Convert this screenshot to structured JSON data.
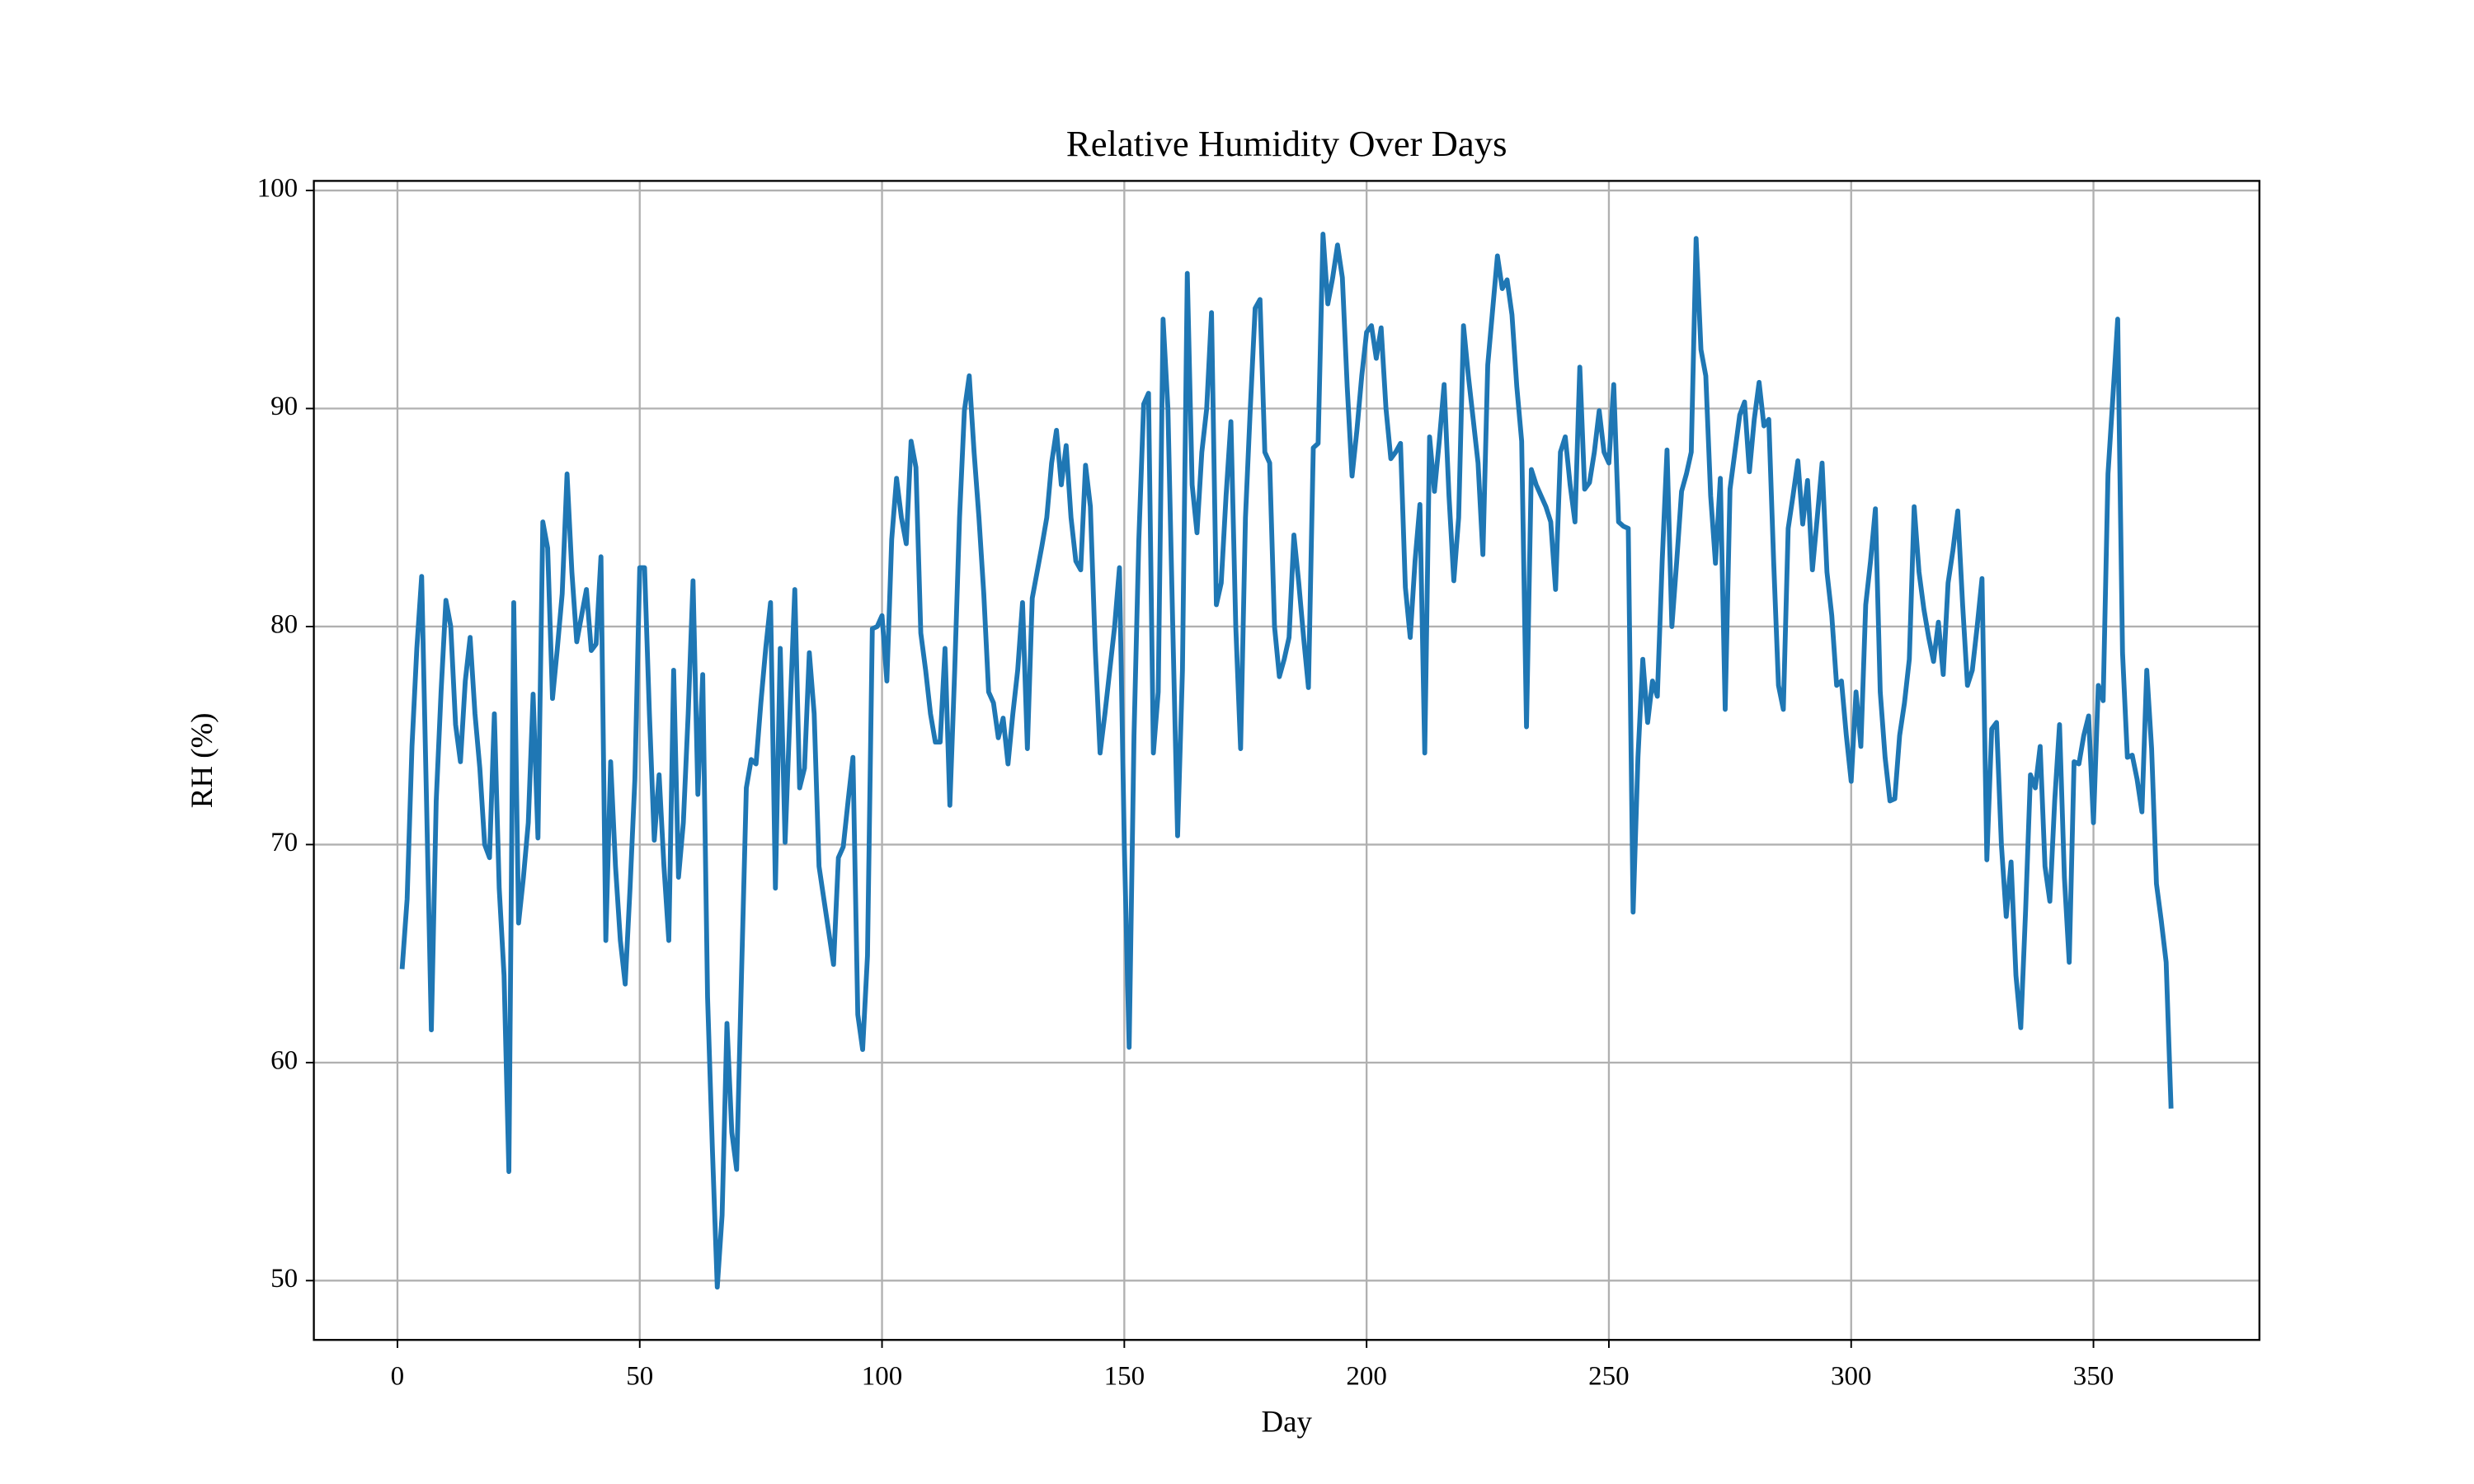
{
  "chart_data": {
    "type": "line",
    "title": "Relative Humidity Over Days",
    "xlabel": "Day",
    "ylabel": "RH (%)",
    "color": "#1f77b4",
    "grid": true,
    "xlim": [
      -17.25,
      384.25
    ],
    "ylim": [
      47.28,
      100.44
    ],
    "xticks": [
      0,
      50,
      100,
      150,
      200,
      250,
      300,
      350
    ],
    "yticks": [
      50,
      60,
      70,
      80,
      90,
      100
    ],
    "x": [
      1,
      2,
      3,
      4,
      5,
      6,
      7,
      8,
      9,
      10,
      11,
      12,
      13,
      14,
      15,
      16,
      17,
      18,
      19,
      20,
      21,
      22,
      23,
      24,
      25,
      26,
      27,
      28,
      29,
      30,
      31,
      32,
      33,
      34,
      35,
      36,
      37,
      38,
      39,
      40,
      41,
      42,
      43,
      44,
      45,
      46,
      47,
      48,
      49,
      50,
      51,
      52,
      53,
      54,
      55,
      56,
      57,
      58,
      59,
      60,
      61,
      62,
      63,
      64,
      65,
      66,
      67,
      68,
      69,
      70,
      71,
      72,
      73,
      74,
      75,
      76,
      77,
      78,
      79,
      80,
      81,
      82,
      83,
      84,
      85,
      86,
      87,
      88,
      89,
      90,
      91,
      92,
      93,
      94,
      95,
      96,
      97,
      98,
      99,
      100,
      101,
      102,
      103,
      104,
      105,
      106,
      107,
      108,
      109,
      110,
      111,
      112,
      113,
      114,
      115,
      116,
      117,
      118,
      119,
      120,
      121,
      122,
      123,
      124,
      125,
      126,
      127,
      128,
      129,
      130,
      131,
      132,
      133,
      134,
      135,
      136,
      137,
      138,
      139,
      140,
      141,
      142,
      143,
      144,
      145,
      146,
      147,
      148,
      149,
      150,
      151,
      152,
      153,
      154,
      155,
      156,
      157,
      158,
      159,
      160,
      161,
      162,
      163,
      164,
      165,
      166,
      167,
      168,
      169,
      170,
      171,
      172,
      173,
      174,
      175,
      176,
      177,
      178,
      179,
      180,
      181,
      182,
      183,
      184,
      185,
      186,
      187,
      188,
      189,
      190,
      191,
      192,
      193,
      194,
      195,
      196,
      197,
      198,
      199,
      200,
      201,
      202,
      203,
      204,
      205,
      206,
      207,
      208,
      209,
      210,
      211,
      212,
      213,
      214,
      215,
      216,
      217,
      218,
      219,
      220,
      221,
      222,
      223,
      224,
      225,
      226,
      227,
      228,
      229,
      230,
      231,
      232,
      233,
      234,
      235,
      236,
      237,
      238,
      239,
      240,
      241,
      242,
      243,
      244,
      245,
      246,
      247,
      248,
      249,
      250,
      251,
      252,
      253,
      254,
      255,
      256,
      257,
      258,
      259,
      260,
      261,
      262,
      263,
      264,
      265,
      266,
      267,
      268,
      269,
      270,
      271,
      272,
      273,
      274,
      275,
      276,
      277,
      278,
      279,
      280,
      281,
      282,
      283,
      284,
      285,
      286,
      287,
      288,
      289,
      290,
      291,
      292,
      293,
      294,
      295,
      296,
      297,
      298,
      299,
      300,
      301,
      302,
      303,
      304,
      305,
      306,
      307,
      308,
      309,
      310,
      311,
      312,
      313,
      314,
      315,
      316,
      317,
      318,
      319,
      320,
      321,
      322,
      323,
      324,
      325,
      326,
      327,
      328,
      329,
      330,
      331,
      332,
      333,
      334,
      335,
      336,
      337,
      338,
      339,
      340,
      341,
      342,
      343,
      344,
      345,
      346,
      347,
      348,
      349,
      350,
      351,
      352,
      353,
      354,
      355,
      356,
      357,
      358,
      359,
      360,
      361,
      362,
      363,
      364,
      365,
      366
    ],
    "values": [
      64.4,
      67.5,
      74.5,
      79,
      82.3,
      72,
      61.5,
      72,
      77,
      81.2,
      80,
      75.5,
      73.8,
      77.5,
      79.5,
      76,
      73.5,
      70,
      69.4,
      76,
      68,
      64,
      55,
      81.1,
      66.4,
      68.5,
      71,
      76.9,
      70.3,
      84.8,
      83.6,
      76.7,
      79,
      81.5,
      87,
      82.5,
      79.3,
      80.5,
      81.7,
      78.9,
      79.2,
      83.2,
      65.6,
      73.8,
      69,
      65.6,
      63.6,
      68,
      73,
      82.7,
      82.7,
      76,
      70.2,
      73.2,
      69,
      65.6,
      78,
      68.5,
      71,
      76,
      82.1,
      72.3,
      77.8,
      63,
      56,
      49.7,
      53,
      61.8,
      56.8,
      55.1,
      64,
      72.6,
      73.9,
      73.7,
      76.5,
      79,
      81.1,
      68,
      79,
      70.1,
      76,
      81.7,
      72.6,
      73.5,
      78.8,
      76,
      69,
      67.5,
      66,
      64.5,
      69.4,
      69.9,
      72,
      74,
      62.2,
      60.6,
      64.9,
      79.9,
      80,
      80.5,
      77.5,
      84,
      86.8,
      85,
      83.8,
      88.5,
      87.3,
      79.7,
      78,
      76,
      74.7,
      74.7,
      79,
      71.8,
      78,
      85,
      89.9,
      91.5,
      88,
      85,
      81.5,
      77,
      76.5,
      74.9,
      75.8,
      73.7,
      76,
      78,
      81.1,
      74.4,
      81.3,
      82.5,
      83.7,
      85,
      87.5,
      89,
      86.5,
      88.3,
      85,
      83,
      82.6,
      87.4,
      85.5,
      79,
      74.2,
      76,
      78,
      80,
      82.7,
      70,
      60.7,
      75,
      84,
      90.2,
      90.7,
      74.2,
      77,
      94.1,
      90,
      80,
      70.4,
      78,
      96.2,
      86.5,
      84.3,
      88,
      90,
      94.4,
      81,
      82,
      86,
      89.4,
      80,
      74.4,
      85,
      90,
      94.6,
      95,
      88,
      87.5,
      80,
      77.7,
      78.5,
      79.5,
      84.2,
      82,
      79.5,
      77.2,
      88.2,
      88.4,
      98,
      94.8,
      96,
      97.5,
      96,
      91,
      86.9,
      89,
      91.5,
      93.5,
      93.8,
      92.3,
      93.7,
      90,
      87.7,
      88,
      88.4,
      81.8,
      79.5,
      83,
      85.6,
      74.2,
      88.7,
      86.2,
      88.5,
      91.1,
      86,
      82.1,
      85,
      93.8,
      91.5,
      89.5,
      87.5,
      83.3,
      92,
      94.5,
      97,
      95.5,
      95.9,
      94.3,
      91,
      88.5,
      75.4,
      87.2,
      86.5,
      86,
      85.5,
      84.8,
      81.7,
      88,
      88.7,
      86.5,
      84.8,
      91.9,
      86.3,
      86.6,
      88,
      89.9,
      88,
      87.5,
      91.1,
      84.8,
      84.6,
      84.5,
      66.9,
      74,
      78.5,
      75.6,
      77.5,
      76.8,
      83,
      88.1,
      80,
      83,
      86.2,
      87,
      88,
      97.8,
      92.7,
      91.5,
      86,
      82.9,
      86.8,
      76.2,
      86.3,
      88,
      89.7,
      90.3,
      87.1,
      89.5,
      91.2,
      89.2,
      89.5,
      83,
      77.3,
      76.2,
      84.5,
      86,
      87.6,
      84.7,
      86.7,
      82.6,
      85,
      87.5,
      82.5,
      80.5,
      77.3,
      77.5,
      75,
      72.9,
      77,
      74.5,
      81,
      83,
      85.4,
      77,
      74,
      72,
      72.1,
      75,
      76.5,
      78.5,
      85.5,
      82.5,
      80.8,
      79.5,
      78.4,
      80.2,
      77.8,
      82,
      83.5,
      85.3,
      81,
      77.3,
      78,
      80,
      82.2,
      69.3,
      75.3,
      75.6,
      70,
      66.7,
      69.2,
      64,
      61.6,
      67,
      73.2,
      72.6,
      74.5,
      69,
      67.4,
      72,
      75.5,
      68.5,
      64.6,
      73.8,
      73.7,
      75,
      75.9,
      71,
      77.3,
      76.6,
      87,
      90.5,
      94.1,
      78.8,
      74,
      74.1,
      73,
      71.5,
      78,
      74.4,
      68.2,
      66.5,
      64.6,
      58
    ]
  }
}
